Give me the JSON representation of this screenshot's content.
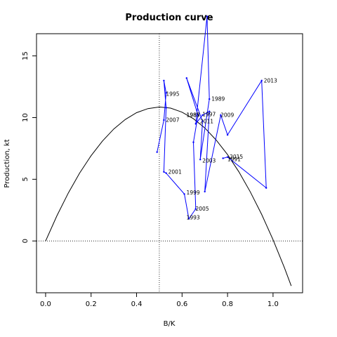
{
  "chart_data": {
    "type": "line",
    "title": "Production curve",
    "xlabel": "B/K",
    "ylabel": "Production, kt",
    "xlim": [
      -0.04,
      1.13
    ],
    "ylim": [
      -4.2,
      16.8
    ],
    "xticks": [
      0.0,
      0.2,
      0.4,
      0.6,
      0.8,
      1.0
    ],
    "xtick_labels": [
      "0.0",
      "0.2",
      "0.4",
      "0.6",
      "0.8",
      "1.0"
    ],
    "yticks": [
      0,
      5,
      10,
      15
    ],
    "ytick_labels": [
      "0",
      "5",
      "10",
      "15"
    ],
    "grid": false,
    "reference_lines": {
      "vertical_x": 0.5,
      "horizontal_y": 0
    },
    "series": [
      {
        "type": "curve",
        "color": "#000000",
        "x": [
          0.0,
          0.05,
          0.1,
          0.15,
          0.2,
          0.25,
          0.3,
          0.35,
          0.4,
          0.45,
          0.5,
          0.55,
          0.6,
          0.65,
          0.7,
          0.75,
          0.8,
          0.85,
          0.9,
          0.95,
          1.0,
          1.05,
          1.08
        ],
        "y": [
          0.0,
          2.06,
          3.9,
          5.51,
          6.91,
          8.1,
          9.08,
          9.84,
          10.4,
          10.73,
          10.86,
          10.77,
          10.44,
          9.91,
          9.16,
          8.18,
          7.0,
          5.6,
          3.98,
          2.15,
          0.1,
          -2.17,
          -3.64
        ]
      },
      {
        "type": "trajectory",
        "color": "#0000ff",
        "x": [
          0.49,
          0.52,
          0.53,
          0.52,
          0.53,
          0.52,
          0.53,
          0.61,
          0.63,
          0.66,
          0.65,
          0.67,
          0.62,
          0.69,
          0.68,
          0.72,
          0.71,
          0.66,
          0.69,
          0.72,
          0.7,
          0.77,
          0.8,
          0.95,
          0.97,
          0.8,
          0.78
        ],
        "y": [
          7.2,
          9.8,
          12.0,
          13.0,
          10.8,
          5.6,
          5.5,
          3.8,
          1.8,
          2.6,
          8.0,
          10.2,
          13.2,
          9.7,
          6.6,
          11.5,
          18.2,
          9.5,
          10.2,
          10.5,
          4.0,
          10.2,
          8.6,
          13.0,
          4.3,
          6.8,
          6.7
        ]
      }
    ],
    "annotations": [
      {
        "label": "1995",
        "x": 0.52,
        "y": 11.9
      },
      {
        "label": "1989",
        "x": 0.72,
        "y": 11.5
      },
      {
        "label": "1985",
        "x": 0.61,
        "y": 10.2
      },
      {
        "label": "1987",
        "x": 0.61,
        "y": 10.2
      },
      {
        "label": "1997",
        "x": 0.68,
        "y": 10.25
      },
      {
        "label": "2009",
        "x": 0.76,
        "y": 10.2
      },
      {
        "label": "2011",
        "x": 0.67,
        "y": 9.7
      },
      {
        "label": "2007",
        "x": 0.52,
        "y": 9.8
      },
      {
        "label": "2013",
        "x": 0.95,
        "y": 13.0
      },
      {
        "label": "2003",
        "x": 0.68,
        "y": 6.5
      },
      {
        "label": "1991",
        "x": 0.79,
        "y": 6.6
      },
      {
        "label": "2015",
        "x": 0.8,
        "y": 6.8
      },
      {
        "label": "2001",
        "x": 0.53,
        "y": 5.6
      },
      {
        "label": "1999",
        "x": 0.61,
        "y": 3.9
      },
      {
        "label": "2005",
        "x": 0.65,
        "y": 2.6
      },
      {
        "label": "1993",
        "x": 0.61,
        "y": 1.9
      }
    ]
  }
}
